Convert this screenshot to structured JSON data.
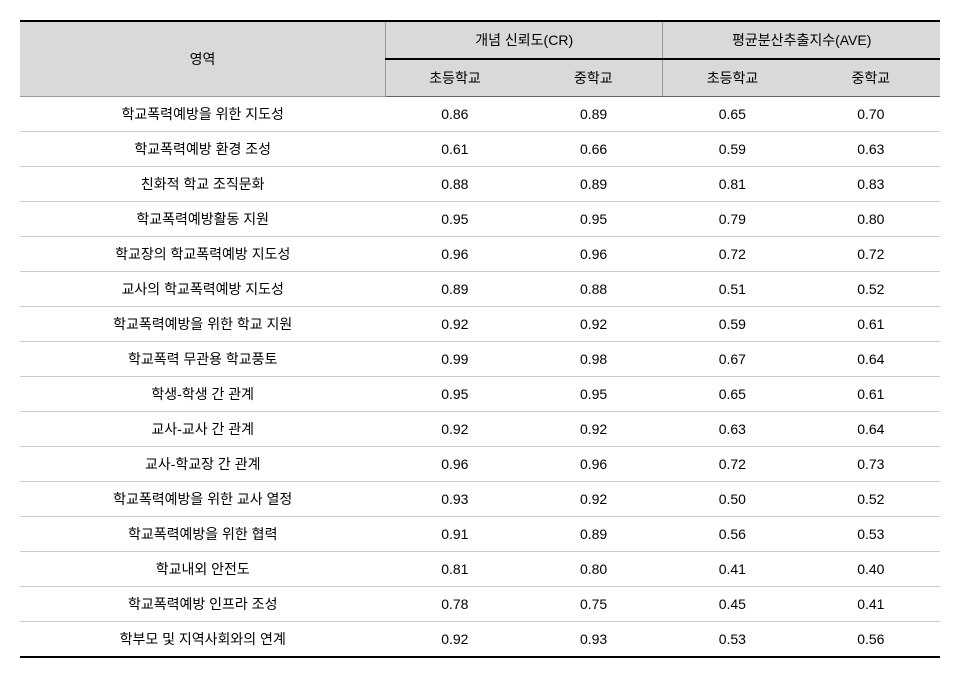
{
  "table": {
    "type": "table",
    "background_color": "#ffffff",
    "header_bg": "#d9d9d9",
    "border_top_color": "#000000",
    "row_border_color": "#cccccc",
    "font_family": "Malgun Gothic",
    "font_size_pt": 11,
    "columns": {
      "area_label": "영역",
      "group1_label": "개념 신뢰도(CR)",
      "group2_label": "평균분산추출지수(AVE)",
      "sub1": "초등학교",
      "sub2": "중학교",
      "sub3": "초등학교",
      "sub4": "중학교"
    },
    "rows": [
      {
        "label": "학교폭력예방을 위한 지도성",
        "cr_elem": "0.86",
        "cr_mid": "0.89",
        "ave_elem": "0.65",
        "ave_mid": "0.70"
      },
      {
        "label": "학교폭력예방 환경 조성",
        "cr_elem": "0.61",
        "cr_mid": "0.66",
        "ave_elem": "0.59",
        "ave_mid": "0.63"
      },
      {
        "label": "친화적 학교 조직문화",
        "cr_elem": "0.88",
        "cr_mid": "0.89",
        "ave_elem": "0.81",
        "ave_mid": "0.83"
      },
      {
        "label": "학교폭력예방활동 지원",
        "cr_elem": "0.95",
        "cr_mid": "0.95",
        "ave_elem": "0.79",
        "ave_mid": "0.80"
      },
      {
        "label": "학교장의 학교폭력예방 지도성",
        "cr_elem": "0.96",
        "cr_mid": "0.96",
        "ave_elem": "0.72",
        "ave_mid": "0.72"
      },
      {
        "label": "교사의 학교폭력예방 지도성",
        "cr_elem": "0.89",
        "cr_mid": "0.88",
        "ave_elem": "0.51",
        "ave_mid": "0.52"
      },
      {
        "label": "학교폭력예방을 위한 학교 지원",
        "cr_elem": "0.92",
        "cr_mid": "0.92",
        "ave_elem": "0.59",
        "ave_mid": "0.61"
      },
      {
        "label": "학교폭력 무관용 학교풍토",
        "cr_elem": "0.99",
        "cr_mid": "0.98",
        "ave_elem": "0.67",
        "ave_mid": "0.64"
      },
      {
        "label": "학생-학생 간 관계",
        "cr_elem": "0.95",
        "cr_mid": "0.95",
        "ave_elem": "0.65",
        "ave_mid": "0.61"
      },
      {
        "label": "교사-교사 간 관계",
        "cr_elem": "0.92",
        "cr_mid": "0.92",
        "ave_elem": "0.63",
        "ave_mid": "0.64"
      },
      {
        "label": "교사-학교장 간 관계",
        "cr_elem": "0.96",
        "cr_mid": "0.96",
        "ave_elem": "0.72",
        "ave_mid": "0.73"
      },
      {
        "label": "학교폭력예방을 위한 교사 열정",
        "cr_elem": "0.93",
        "cr_mid": "0.92",
        "ave_elem": "0.50",
        "ave_mid": "0.52"
      },
      {
        "label": "학교폭력예방을 위한 협력",
        "cr_elem": "0.91",
        "cr_mid": "0.89",
        "ave_elem": "0.56",
        "ave_mid": "0.53"
      },
      {
        "label": "학교내외 안전도",
        "cr_elem": "0.81",
        "cr_mid": "0.80",
        "ave_elem": "0.41",
        "ave_mid": "0.40"
      },
      {
        "label": "학교폭력예방 인프라 조성",
        "cr_elem": "0.78",
        "cr_mid": "0.75",
        "ave_elem": "0.45",
        "ave_mid": "0.41"
      },
      {
        "label": "학부모 및 지역사회와의 연계",
        "cr_elem": "0.92",
        "cr_mid": "0.93",
        "ave_elem": "0.53",
        "ave_mid": "0.56"
      }
    ]
  }
}
